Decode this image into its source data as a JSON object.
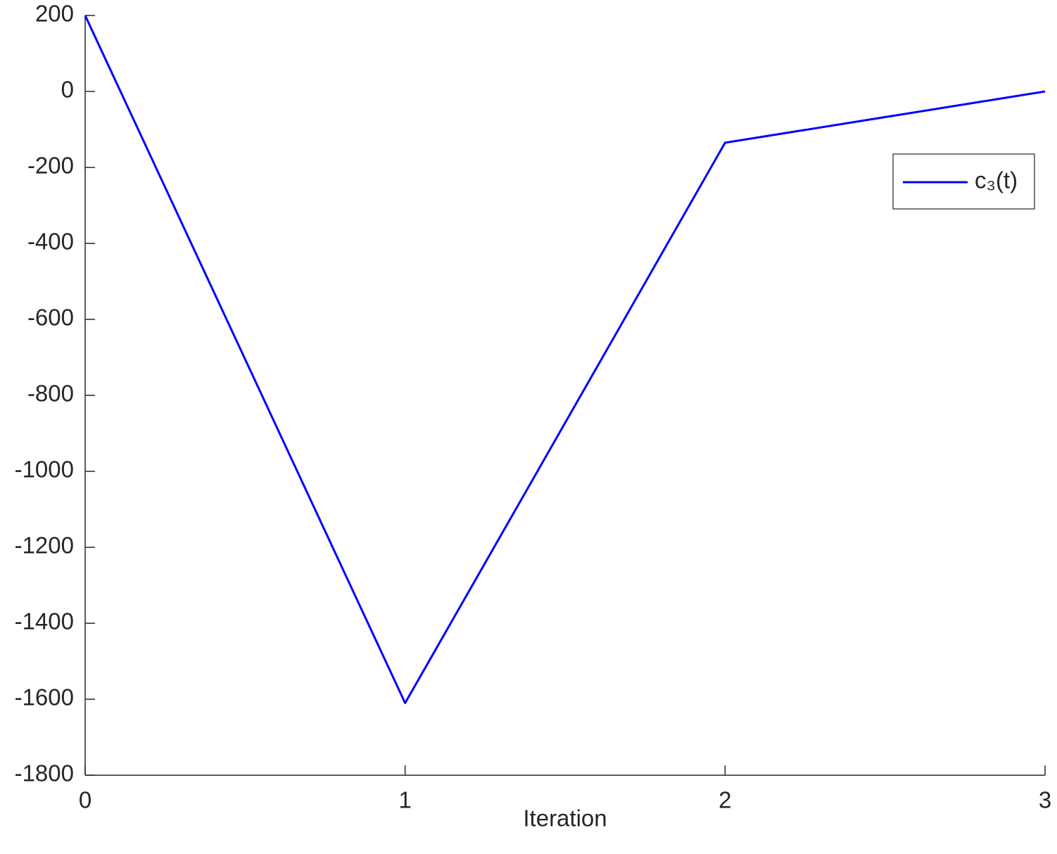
{
  "chart_data": {
    "type": "line",
    "x_label": "Iteration",
    "x": [
      0,
      1,
      2,
      3
    ],
    "series": [
      {
        "name": "c₃(t)",
        "color": "#0000ff",
        "values": [
          200,
          -1610,
          -135,
          0
        ]
      }
    ],
    "xlim": [
      0,
      3
    ],
    "xticks": [
      0,
      1,
      2,
      3
    ],
    "ylim": [
      -1800,
      200
    ],
    "yticks": [
      200,
      0,
      -200,
      -400,
      -600,
      -800,
      -1000,
      -1200,
      -1400,
      -1600,
      -1800
    ],
    "grid": false,
    "legend": "upper right"
  }
}
